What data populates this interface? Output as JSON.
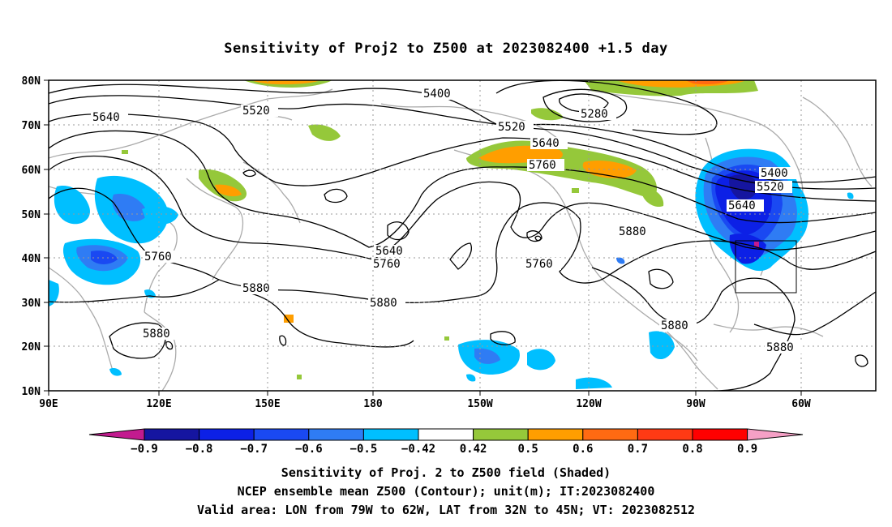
{
  "title": "Sensitivity of Proj2 to Z500 at 2023082400 +1.5 day",
  "axes": {
    "lon_labels": [
      "90E",
      "120E",
      "150E",
      "180",
      "150W",
      "120W",
      "90W",
      "60W"
    ],
    "lat_labels": [
      "80N",
      "70N",
      "60N",
      "50N",
      "40N",
      "30N",
      "20N",
      "10N"
    ]
  },
  "contour_labels": [
    "5400",
    "5280",
    "5520",
    "5640",
    "5520",
    "5640",
    "5760",
    "5400",
    "5520",
    "5640",
    "5640",
    "5760",
    "5880",
    "5760",
    "5880",
    "5880",
    "5760",
    "5880",
    "5880",
    "5880"
  ],
  "colorbar": {
    "labels": [
      "-0.9",
      "-0.8",
      "-0.7",
      "-0.6",
      "-0.5",
      "-0.42",
      "0.42",
      "0.5",
      "0.6",
      "0.7",
      "0.8",
      "0.9"
    ],
    "colors": [
      "#1515a0",
      "#0c20e6",
      "#1a49f2",
      "#2f7cf4",
      "#00bfff",
      "#ffffff",
      "#95c83a",
      "#ff9e00",
      "#ff6a12",
      "#ff3a14",
      "#ff0000"
    ],
    "left_tip": "#c21b8f",
    "right_tip": "#f5a0c6"
  },
  "captions": [
    "Sensitivity of Proj. 2 to Z500 field (Shaded)",
    "NCEP ensemble mean Z500 (Contour); unit(m); IT:2023082400",
    "Valid area: LON from 79W to 62W, LAT from 32N to 45N; VT: 2023082512"
  ]
}
